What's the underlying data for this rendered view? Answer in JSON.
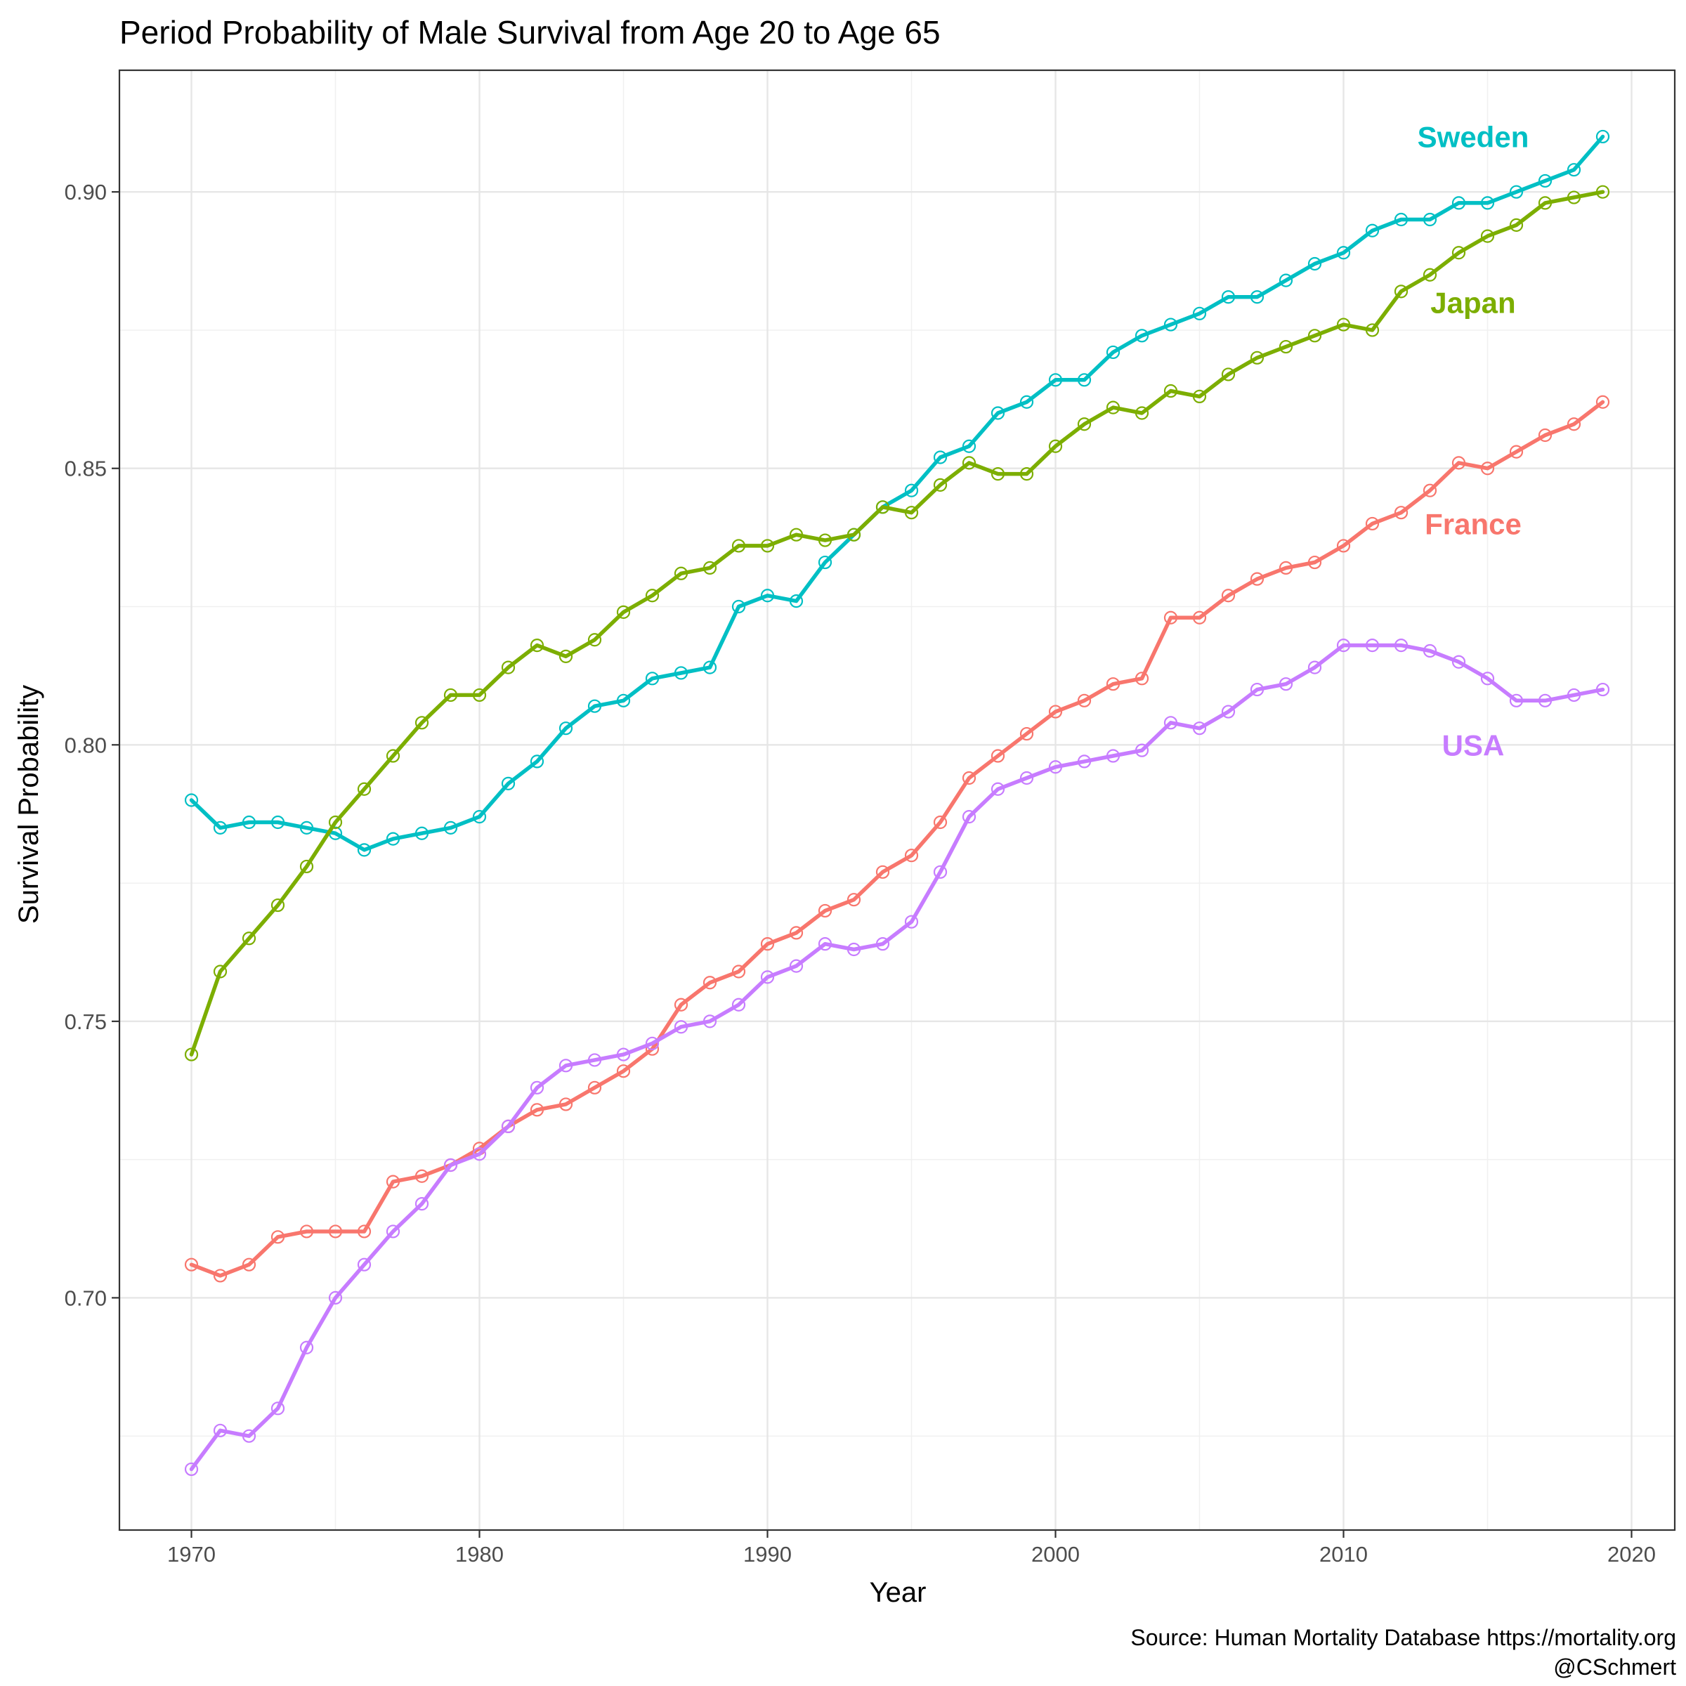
{
  "chart_data": {
    "type": "line",
    "title": "Period Probability of Male Survival from Age 20 to Age 65",
    "xlabel": "Year",
    "ylabel": "Survival Probability",
    "caption": [
      "Source: Human Mortality Database https://mortality.org",
      "@CSchmert"
    ],
    "xlim": [
      1967.5,
      2021.5
    ],
    "ylim": [
      0.658,
      0.922
    ],
    "x_major_ticks": [
      1970,
      1980,
      1990,
      2000,
      2010,
      2020
    ],
    "x_tick_labels": [
      "1970",
      "1980",
      "1990",
      "2000",
      "2010",
      "2020"
    ],
    "x_minor_ticks": [
      1975,
      1985,
      1995,
      2005,
      2015
    ],
    "y_major_ticks": [
      0.7,
      0.75,
      0.8,
      0.85,
      0.9
    ],
    "y_tick_labels": [
      "0.70",
      "0.75",
      "0.80",
      "0.85",
      "0.90"
    ],
    "y_minor_ticks": [
      0.675,
      0.725,
      0.775,
      0.825,
      0.875
    ],
    "grid": true,
    "legend": "none (direct labels)",
    "x": [
      1970,
      1971,
      1972,
      1973,
      1974,
      1975,
      1976,
      1977,
      1978,
      1979,
      1980,
      1981,
      1982,
      1983,
      1984,
      1985,
      1986,
      1987,
      1988,
      1989,
      1990,
      1991,
      1992,
      1993,
      1994,
      1995,
      1996,
      1997,
      1998,
      1999,
      2000,
      2001,
      2002,
      2003,
      2004,
      2005,
      2006,
      2007,
      2008,
      2009,
      2010,
      2011,
      2012,
      2013,
      2014,
      2015,
      2016,
      2017,
      2018,
      2019
    ],
    "series": [
      {
        "name": "Sweden",
        "color": "#00BFC4",
        "label_pos": [
          2014.5,
          0.9095
        ],
        "values": [
          0.79,
          0.785,
          0.786,
          0.786,
          0.785,
          0.784,
          0.781,
          0.783,
          0.784,
          0.785,
          0.787,
          0.793,
          0.797,
          0.803,
          0.807,
          0.808,
          0.812,
          0.813,
          0.814,
          0.825,
          0.827,
          0.826,
          0.833,
          0.838,
          0.843,
          0.846,
          0.852,
          0.854,
          0.86,
          0.862,
          0.866,
          0.866,
          0.871,
          0.874,
          0.876,
          0.878,
          0.881,
          0.881,
          0.884,
          0.887,
          0.889,
          0.893,
          0.895,
          0.895,
          0.898,
          0.898,
          0.9,
          0.902,
          0.904,
          0.91
        ]
      },
      {
        "name": "Japan",
        "color": "#7CAE00",
        "label_pos": [
          2014.5,
          0.8795
        ],
        "values": [
          0.744,
          0.759,
          0.765,
          0.771,
          0.778,
          0.786,
          0.792,
          0.798,
          0.804,
          0.809,
          0.809,
          0.814,
          0.818,
          0.816,
          0.819,
          0.824,
          0.827,
          0.831,
          0.832,
          0.836,
          0.836,
          0.838,
          0.837,
          0.838,
          0.843,
          0.842,
          0.847,
          0.851,
          0.849,
          0.849,
          0.854,
          0.858,
          0.861,
          0.86,
          0.864,
          0.863,
          0.867,
          0.87,
          0.872,
          0.874,
          0.876,
          0.875,
          0.882,
          0.885,
          0.889,
          0.892,
          0.894,
          0.898,
          0.899,
          0.9
        ]
      },
      {
        "name": "France",
        "color": "#F8766D",
        "label_pos": [
          2014.5,
          0.8395
        ],
        "values": [
          0.706,
          0.704,
          0.706,
          0.711,
          0.712,
          0.712,
          0.712,
          0.721,
          0.722,
          0.724,
          0.727,
          0.731,
          0.734,
          0.735,
          0.738,
          0.741,
          0.745,
          0.753,
          0.757,
          0.759,
          0.764,
          0.766,
          0.77,
          0.772,
          0.777,
          0.78,
          0.786,
          0.794,
          0.798,
          0.802,
          0.806,
          0.808,
          0.811,
          0.812,
          0.823,
          0.823,
          0.827,
          0.83,
          0.832,
          0.833,
          0.836,
          0.84,
          0.842,
          0.846,
          0.851,
          0.85,
          0.853,
          0.856,
          0.858,
          0.862
        ]
      },
      {
        "name": "USA",
        "color": "#C77CFF",
        "label_pos": [
          2014.5,
          0.7995
        ],
        "values": [
          0.669,
          0.676,
          0.675,
          0.68,
          0.691,
          0.7,
          0.706,
          0.712,
          0.717,
          0.724,
          0.726,
          0.731,
          0.738,
          0.742,
          0.743,
          0.744,
          0.746,
          0.749,
          0.75,
          0.753,
          0.758,
          0.76,
          0.764,
          0.763,
          0.764,
          0.768,
          0.777,
          0.787,
          0.792,
          0.794,
          0.796,
          0.797,
          0.798,
          0.799,
          0.804,
          0.803,
          0.806,
          0.81,
          0.811,
          0.814,
          0.818,
          0.818,
          0.818,
          0.817,
          0.815,
          0.812,
          0.808,
          0.808,
          0.809,
          0.81
        ]
      }
    ]
  }
}
